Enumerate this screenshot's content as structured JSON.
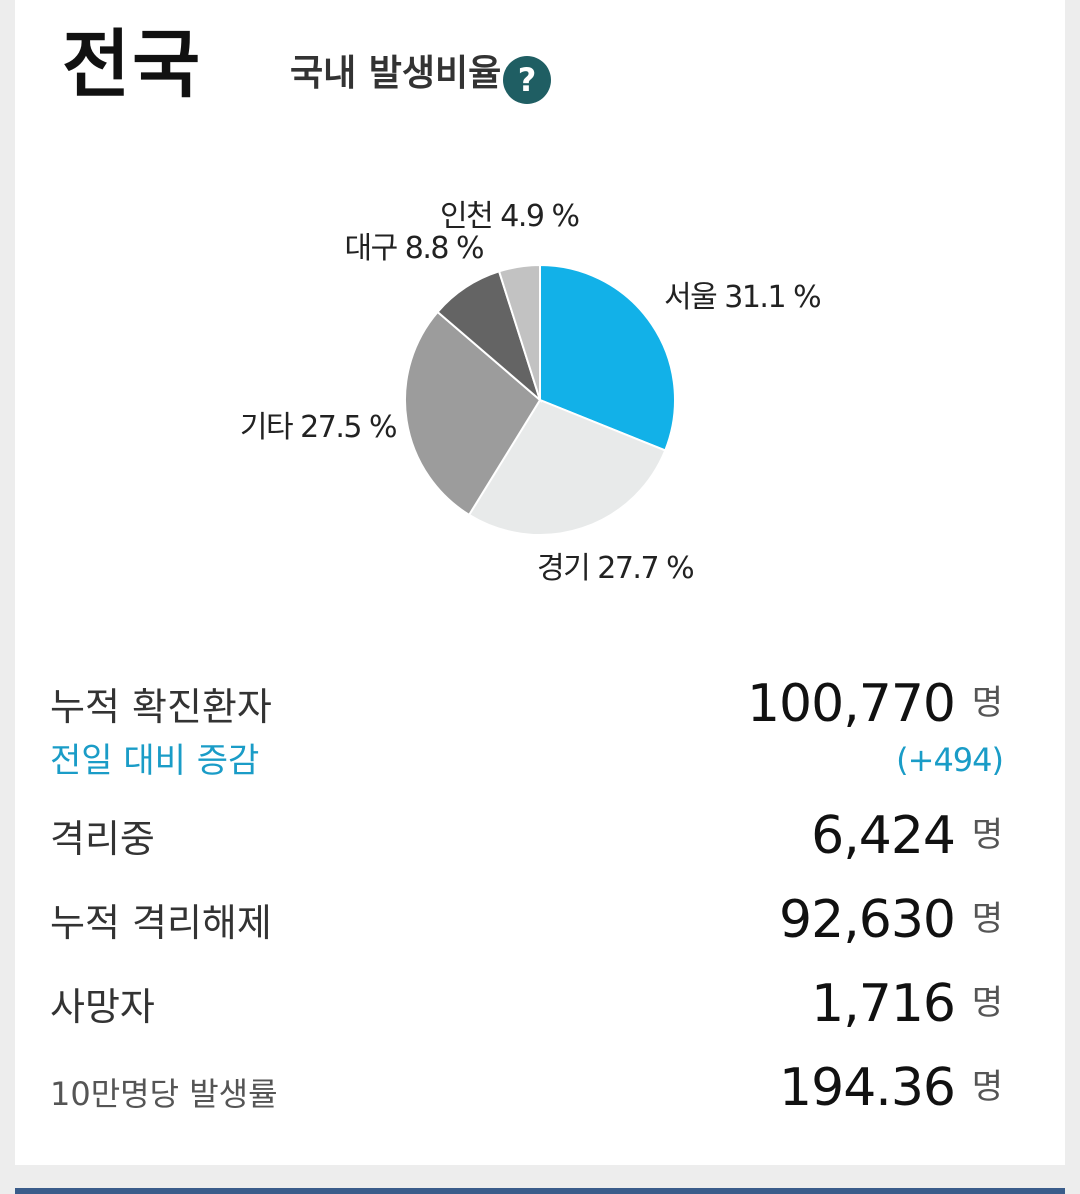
{
  "header": {
    "region": "전국",
    "subtitle": "국내 발생비율",
    "help_label": "?"
  },
  "chart_data": {
    "type": "pie",
    "slices": [
      {
        "label": "서울",
        "value": 31.1,
        "display": "서울 31.1 %",
        "color": "#12b1e8"
      },
      {
        "label": "경기",
        "value": 27.7,
        "display": "경기 27.7 %",
        "color": "#e8eaea"
      },
      {
        "label": "기타",
        "value": 27.5,
        "display": "기타 27.5 %",
        "color": "#9c9c9c"
      },
      {
        "label": "대구",
        "value": 8.8,
        "display": "대구 8.8 %",
        "color": "#646464"
      },
      {
        "label": "인천",
        "value": 4.9,
        "display": "인천 4.9 %",
        "color": "#c2c2c2"
      }
    ]
  },
  "stats": {
    "confirmed": {
      "label": "누적 확진환자",
      "value": "100,770",
      "unit": "명"
    },
    "change": {
      "label": "전일 대비 증감",
      "value": "(+494)"
    },
    "isolated": {
      "label": "격리중",
      "value": "6,424",
      "unit": "명"
    },
    "released": {
      "label": "누적 격리해제",
      "value": "92,630",
      "unit": "명"
    },
    "deaths": {
      "label": "사망자",
      "value": "1,716",
      "unit": "명"
    },
    "rate": {
      "label": "10만명당 발생률",
      "value": "194.36",
      "unit": "명"
    }
  }
}
